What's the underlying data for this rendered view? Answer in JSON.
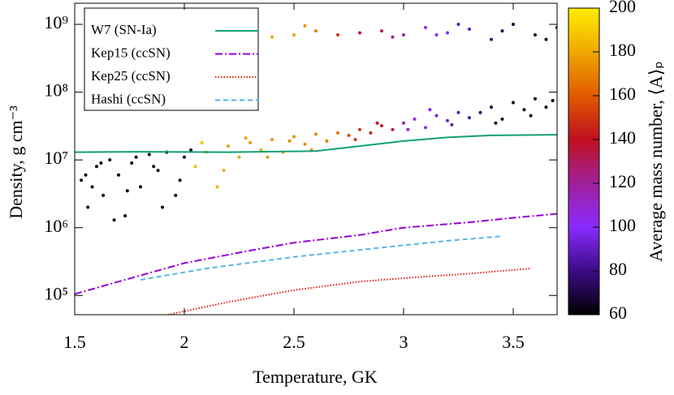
{
  "chart_data": {
    "type": "scatter",
    "xlabel": "Temperature, GK",
    "ylabel": "Density, g cm⁻³",
    "colorbar_label": "Average mass number, ⟨A⟩ₚ",
    "xlim": [
      1.5,
      3.7
    ],
    "xticks": [
      1.5,
      2,
      2.5,
      3,
      3.5
    ],
    "ylim": [
      52000,
      2050000000
    ],
    "log_y": true,
    "yticks": [
      {
        "value": 100000,
        "label": "10⁵"
      },
      {
        "value": 1000000,
        "label": "10⁶"
      },
      {
        "value": 10000000,
        "label": "10⁷"
      },
      {
        "value": 100000000,
        "label": "10⁸"
      },
      {
        "value": 1000000000,
        "label": "10⁹"
      }
    ],
    "clim": [
      60,
      200
    ],
    "cticks": [
      60,
      80,
      100,
      120,
      140,
      160,
      180,
      200
    ],
    "colormap": [
      "#000000",
      "#3b0c86",
      "#8a2bff",
      "#a0209a",
      "#c01020",
      "#e05a00",
      "#f0a800",
      "#ffee00"
    ],
    "legend": "upper left",
    "points": {
      "x": [
        1.53,
        1.56,
        1.6,
        1.63,
        1.66,
        1.7,
        1.73,
        1.76,
        1.8,
        1.84,
        1.88,
        1.92,
        1.96,
        2.0,
        2.03,
        1.58,
        1.68,
        1.78,
        1.9,
        1.55,
        1.62,
        1.74,
        1.86,
        1.98,
        2.05,
        2.1,
        2.15,
        2.2,
        2.25,
        2.3,
        2.35,
        2.4,
        2.45,
        2.5,
        2.55,
        2.6,
        2.65,
        2.7,
        2.08,
        2.18,
        2.28,
        2.38,
        2.48,
        2.58,
        2.75,
        2.8,
        2.85,
        2.9,
        2.95,
        2.78,
        2.88,
        3.0,
        3.05,
        3.1,
        3.15,
        3.2,
        3.25,
        3.3,
        3.02,
        3.12,
        3.22,
        3.35,
        3.4,
        3.45,
        3.5,
        3.55,
        3.6,
        3.65,
        3.68,
        3.42,
        3.58,
        2.4,
        2.5,
        2.6,
        2.7,
        2.8,
        2.9,
        3.0,
        3.1,
        3.2,
        3.3,
        3.4,
        3.5,
        3.6,
        3.7,
        2.55,
        2.95,
        3.15,
        3.45,
        3.65,
        3.25
      ],
      "y": [
        5000000,
        2000000,
        8000000,
        3000000,
        10000000,
        6000000,
        1500000,
        9000000,
        4000000,
        12000000,
        7000000,
        13000000,
        3000000,
        11000000,
        14000000,
        4000000,
        1300000,
        11000000,
        2000000,
        6000000,
        9000000,
        3500000,
        8000000,
        5000000,
        8000000,
        13000000,
        4000000,
        16000000,
        11000000,
        18000000,
        14000000,
        20000000,
        13000000,
        22000000,
        17000000,
        24000000,
        19000000,
        25000000,
        18000000,
        7000000,
        21000000,
        11000000,
        19000000,
        14000000,
        23000000,
        28000000,
        25000000,
        32000000,
        28000000,
        20000000,
        35000000,
        35000000,
        40000000,
        30000000,
        45000000,
        38000000,
        50000000,
        42000000,
        28000000,
        55000000,
        33000000,
        50000000,
        60000000,
        40000000,
        70000000,
        55000000,
        80000000,
        60000000,
        75000000,
        35000000,
        45000000,
        650000000,
        700000000,
        800000000,
        700000000,
        750000000,
        800000000,
        700000000,
        900000000,
        750000000,
        850000000,
        600000000,
        1000000000,
        700000000,
        900000000,
        950000000,
        650000000,
        700000000,
        800000000,
        600000000,
        1000000000
      ],
      "c": [
        62,
        61,
        63,
        60,
        64,
        62,
        61,
        65,
        62,
        63,
        61,
        64,
        60,
        66,
        65,
        62,
        61,
        63,
        62,
        60,
        64,
        61,
        63,
        62,
        185,
        180,
        182,
        178,
        180,
        176,
        178,
        175,
        177,
        174,
        172,
        170,
        168,
        165,
        188,
        183,
        178,
        176,
        172,
        170,
        155,
        150,
        145,
        138,
        130,
        152,
        140,
        115,
        105,
        100,
        95,
        92,
        88,
        82,
        110,
        98,
        90,
        75,
        70,
        66,
        64,
        62,
        62,
        61,
        60,
        68,
        63,
        180,
        178,
        170,
        150,
        135,
        128,
        115,
        105,
        98,
        90,
        80,
        70,
        64,
        62,
        175,
        125,
        100,
        72,
        61,
        88
      ]
    },
    "lines": [
      {
        "name": "W7 (SN-Ia)",
        "color": "#10a078",
        "dash": "solid",
        "x": [
          1.5,
          1.8,
          2.2,
          2.6,
          2.8,
          3.0,
          3.2,
          3.4,
          3.7
        ],
        "y": [
          13000000,
          13200000,
          13000000,
          13500000,
          16000000,
          19000000,
          21500000,
          23000000,
          23500000
        ]
      },
      {
        "name": "Kep15 (ccSN)",
        "color": "#9400d3",
        "dash": "dash-dot",
        "x": [
          1.5,
          1.7,
          2.0,
          2.3,
          2.5,
          2.8,
          3.0,
          3.3,
          3.5,
          3.7
        ],
        "y": [
          105000,
          160000,
          300000,
          460000,
          600000,
          780000,
          1000000,
          1200000,
          1400000,
          1600000
        ]
      },
      {
        "name": "Kep25 (ccSN)",
        "color": "#e51e10",
        "dash": "dotted",
        "x": [
          1.9,
          2.2,
          2.5,
          2.8,
          3.0,
          3.3,
          3.58
        ],
        "y": [
          50000,
          80000,
          120000,
          160000,
          180000,
          210000,
          250000
        ]
      },
      {
        "name": "Hashi (ccSN)",
        "color": "#56b4e9",
        "dash": "dashed",
        "x": [
          1.8,
          2.1,
          2.5,
          2.8,
          3.0,
          3.2,
          3.45
        ],
        "y": [
          170000,
          250000,
          370000,
          470000,
          550000,
          640000,
          750000
        ]
      }
    ]
  }
}
